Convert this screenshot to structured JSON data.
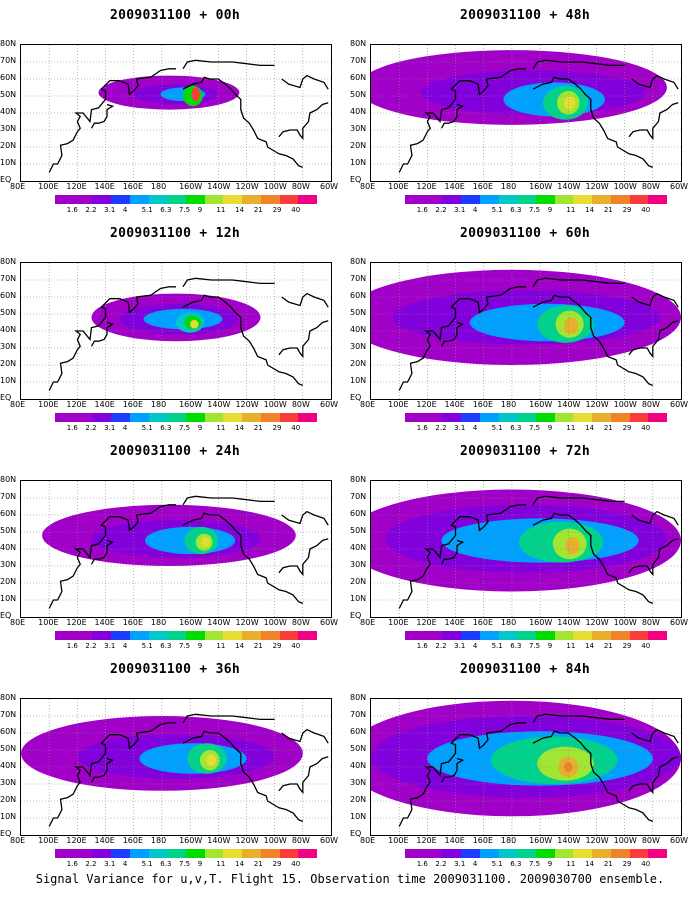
{
  "caption": "Signal Variance for u,v,T. Flight 15. Observation time 2009031100. 2009030700 ensemble.",
  "x_tick_labels": [
    "80E",
    "100E",
    "120E",
    "140E",
    "160E",
    "180",
    "160W",
    "140W",
    "120W",
    "100W",
    "80W",
    "60W"
  ],
  "y_tick_labels": [
    "EQ",
    "10N",
    "20N",
    "30N",
    "40N",
    "50N",
    "60N",
    "70N",
    "80N"
  ],
  "colorbar_labels": [
    "1.6",
    "2.2",
    "3.1",
    "4",
    "5.1",
    "6.3",
    "7.5",
    "9",
    "11",
    "14",
    "21",
    "29",
    "40"
  ],
  "colorbar_colors": [
    "#a000c8",
    "#8200dc",
    "#1e3cff",
    "#00a0ff",
    "#00c8c8",
    "#00d28c",
    "#00dc00",
    "#a0e632",
    "#e6dc32",
    "#e6af2d",
    "#f08228",
    "#fa3c3c",
    "#f00082"
  ],
  "chart_data": [
    {
      "type": "heatmap",
      "title": "2009031100 + 00h",
      "forecast_hour": 0,
      "position": "left",
      "max_level": "40",
      "peak": {
        "lon": -155,
        "lat": 50
      }
    },
    {
      "type": "heatmap",
      "title": "2009031100 + 12h",
      "forecast_hour": 12,
      "position": "left",
      "max_level": "11",
      "peak": {
        "lon": -158,
        "lat": 44
      }
    },
    {
      "type": "heatmap",
      "title": "2009031100 + 24h",
      "forecast_hour": 24,
      "position": "left",
      "max_level": "11",
      "peak": {
        "lon": -150,
        "lat": 45
      }
    },
    {
      "type": "heatmap",
      "title": "2009031100 + 36h",
      "forecast_hour": 36,
      "position": "left",
      "max_level": "11",
      "peak": {
        "lon": -145,
        "lat": 44
      }
    },
    {
      "type": "heatmap",
      "title": "2009031100 + 48h",
      "forecast_hour": 48,
      "position": "right",
      "max_level": "11",
      "peak": {
        "lon": -140,
        "lat": 46
      }
    },
    {
      "type": "heatmap",
      "title": "2009031100 + 60h",
      "forecast_hour": 60,
      "position": "right",
      "max_level": "14",
      "peak": {
        "lon": -138,
        "lat": 44
      }
    },
    {
      "type": "heatmap",
      "title": "2009031100 + 72h",
      "forecast_hour": 72,
      "position": "right",
      "max_level": "14",
      "peak": {
        "lon": -137,
        "lat": 43
      }
    },
    {
      "type": "heatmap",
      "title": "2009031100 + 84h",
      "forecast_hour": 84,
      "position": "right",
      "max_level": "14",
      "peak": {
        "lon": -140,
        "lat": 40
      }
    }
  ]
}
